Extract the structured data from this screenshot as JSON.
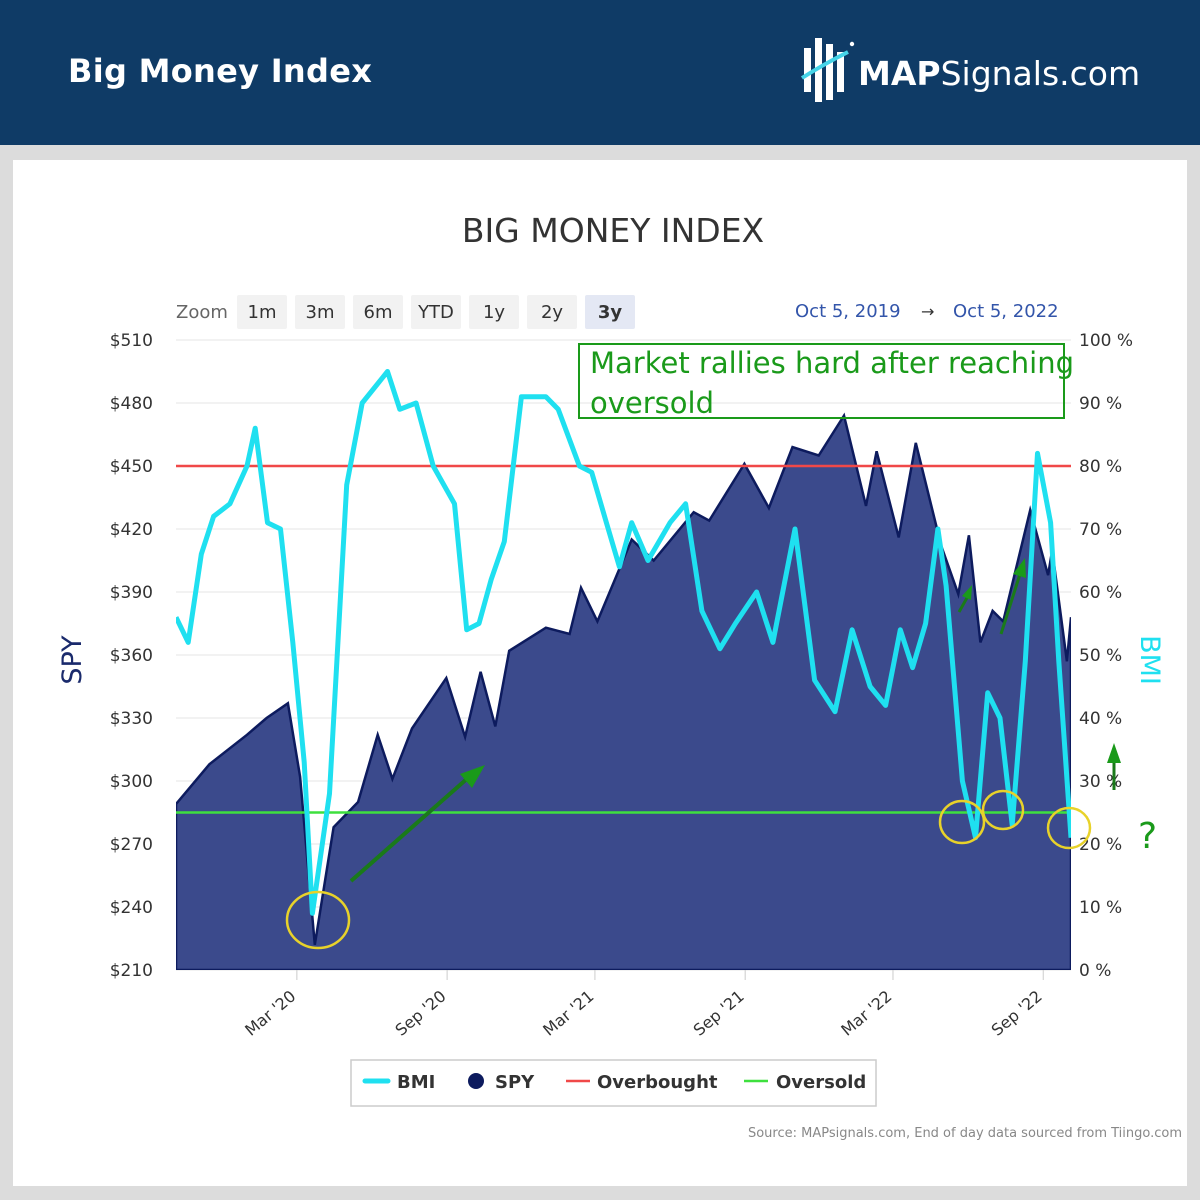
{
  "header": {
    "title": "Big Money Index"
  },
  "logo": {
    "brand_bold": "MAP",
    "brand_rest": "Signals.com"
  },
  "colors": {
    "header_bg": "#0f3b66",
    "bmi": "#1fe0f0",
    "spy_fill": "#3b4a8c",
    "spy_line": "#0d1b5e",
    "overbought": "#f04848",
    "oversold": "#3ee03e",
    "annotation": "#1a9a1a",
    "circle": "#e8d22a"
  },
  "toolbar": {
    "zoom_label": "Zoom",
    "buttons": [
      "1m",
      "3m",
      "6m",
      "YTD",
      "1y",
      "2y",
      "3y"
    ],
    "active": "3y",
    "range_from": "Oct 5, 2019",
    "range_arrow": "→",
    "range_to": "Oct 5, 2022"
  },
  "annotations": {
    "callout": "Market rallies hard after reaching oversold",
    "question": "?"
  },
  "source": "Source: MAPsignals.com, End of day data sourced from Tiingo.com",
  "chart_data": {
    "type": "area",
    "title": "BIG MONEY INDEX",
    "ylabel": "SPY",
    "y2label": "BMI",
    "ylim": [
      210,
      510
    ],
    "y2lim": [
      0,
      100
    ],
    "x_range": [
      "2019-10-05",
      "2022-10-05"
    ],
    "y_ticks": [
      "$510",
      "$480",
      "$450",
      "$420",
      "$390",
      "$360",
      "$330",
      "$300",
      "$270",
      "$240",
      "$210"
    ],
    "y2_ticks": [
      "100 %",
      "90 %",
      "80 %",
      "70 %",
      "60 %",
      "50 %",
      "40 %",
      "30 %",
      "20 %",
      "10 %",
      "0 %"
    ],
    "x_ticks": [
      {
        "date": "2020-03-01",
        "label": "Mar '20"
      },
      {
        "date": "2020-09-01",
        "label": "Sep '20"
      },
      {
        "date": "2021-03-01",
        "label": "Mar '21"
      },
      {
        "date": "2021-09-01",
        "label": "Sep '21"
      },
      {
        "date": "2022-03-01",
        "label": "Mar '22"
      },
      {
        "date": "2022-09-01",
        "label": "Sep '22"
      }
    ],
    "overbought": 80,
    "oversold": 25,
    "legend": [
      "BMI",
      "SPY",
      "Overbought",
      "Oversold"
    ],
    "legend_position": "bottom-center",
    "series": [
      {
        "name": "SPY",
        "axis": "left",
        "points": [
          [
            "2019-10-05",
            289
          ],
          [
            "2019-11-15",
            308
          ],
          [
            "2019-12-31",
            322
          ],
          [
            "2020-01-24",
            330
          ],
          [
            "2020-02-19",
            337
          ],
          [
            "2020-03-05",
            302
          ],
          [
            "2020-03-23",
            222
          ],
          [
            "2020-04-15",
            278
          ],
          [
            "2020-05-15",
            290
          ],
          [
            "2020-06-08",
            322
          ],
          [
            "2020-06-26",
            301
          ],
          [
            "2020-07-20",
            325
          ],
          [
            "2020-08-31",
            349
          ],
          [
            "2020-09-23",
            321
          ],
          [
            "2020-10-12",
            352
          ],
          [
            "2020-10-30",
            326
          ],
          [
            "2020-11-16",
            362
          ],
          [
            "2020-12-31",
            373
          ],
          [
            "2021-01-29",
            370
          ],
          [
            "2021-02-12",
            392
          ],
          [
            "2021-03-04",
            376
          ],
          [
            "2021-04-15",
            415
          ],
          [
            "2021-05-12",
            405
          ],
          [
            "2021-06-30",
            428
          ],
          [
            "2021-07-19",
            424
          ],
          [
            "2021-08-31",
            451
          ],
          [
            "2021-09-30",
            430
          ],
          [
            "2021-10-29",
            459
          ],
          [
            "2021-11-30",
            455
          ],
          [
            "2021-12-31",
            474
          ],
          [
            "2022-01-27",
            431
          ],
          [
            "2022-02-09",
            457
          ],
          [
            "2022-03-08",
            416
          ],
          [
            "2022-03-29",
            461
          ],
          [
            "2022-04-29",
            412
          ],
          [
            "2022-05-20",
            389
          ],
          [
            "2022-06-02",
            417
          ],
          [
            "2022-06-16",
            366
          ],
          [
            "2022-07-01",
            381
          ],
          [
            "2022-07-14",
            376
          ],
          [
            "2022-08-16",
            429
          ],
          [
            "2022-09-07",
            398
          ],
          [
            "2022-09-12",
            410
          ],
          [
            "2022-09-30",
            357
          ],
          [
            "2022-10-05",
            378
          ]
        ]
      },
      {
        "name": "BMI",
        "axis": "right",
        "points": [
          [
            "2019-10-05",
            56
          ],
          [
            "2019-10-20",
            52
          ],
          [
            "2019-11-05",
            66
          ],
          [
            "2019-11-20",
            72
          ],
          [
            "2019-12-10",
            74
          ],
          [
            "2019-12-31",
            80
          ],
          [
            "2020-01-10",
            86
          ],
          [
            "2020-01-25",
            71
          ],
          [
            "2020-02-10",
            70
          ],
          [
            "2020-02-25",
            52
          ],
          [
            "2020-03-10",
            33
          ],
          [
            "2020-03-20",
            9
          ],
          [
            "2020-04-10",
            28
          ],
          [
            "2020-05-01",
            77
          ],
          [
            "2020-05-20",
            90
          ],
          [
            "2020-06-20",
            95
          ],
          [
            "2020-07-05",
            89
          ],
          [
            "2020-07-25",
            90
          ],
          [
            "2020-08-15",
            80
          ],
          [
            "2020-09-10",
            74
          ],
          [
            "2020-09-25",
            54
          ],
          [
            "2020-10-10",
            55
          ],
          [
            "2020-10-25",
            62
          ],
          [
            "2020-11-10",
            68
          ],
          [
            "2020-12-01",
            91
          ],
          [
            "2020-12-31",
            91
          ],
          [
            "2021-01-15",
            89
          ],
          [
            "2021-02-10",
            80
          ],
          [
            "2021-02-25",
            79
          ],
          [
            "2021-03-15",
            71
          ],
          [
            "2021-03-31",
            64
          ],
          [
            "2021-04-15",
            71
          ],
          [
            "2021-05-05",
            65
          ],
          [
            "2021-06-01",
            71
          ],
          [
            "2021-06-20",
            74
          ],
          [
            "2021-07-10",
            57
          ],
          [
            "2021-08-01",
            51
          ],
          [
            "2021-08-20",
            55
          ],
          [
            "2021-09-15",
            60
          ],
          [
            "2021-10-05",
            52
          ],
          [
            "2021-11-01",
            70
          ],
          [
            "2021-11-25",
            46
          ],
          [
            "2021-12-20",
            41
          ],
          [
            "2022-01-10",
            54
          ],
          [
            "2022-02-01",
            45
          ],
          [
            "2022-02-20",
            42
          ],
          [
            "2022-03-10",
            54
          ],
          [
            "2022-03-25",
            48
          ],
          [
            "2022-04-10",
            55
          ],
          [
            "2022-04-25",
            70
          ],
          [
            "2022-05-05",
            61
          ],
          [
            "2022-05-25",
            30
          ],
          [
            "2022-06-10",
            21
          ],
          [
            "2022-06-25",
            44
          ],
          [
            "2022-07-10",
            40
          ],
          [
            "2022-07-25",
            23
          ],
          [
            "2022-08-10",
            49
          ],
          [
            "2022-08-25",
            82
          ],
          [
            "2022-09-10",
            71
          ],
          [
            "2022-09-20",
            49
          ],
          [
            "2022-10-05",
            21
          ]
        ]
      }
    ]
  }
}
